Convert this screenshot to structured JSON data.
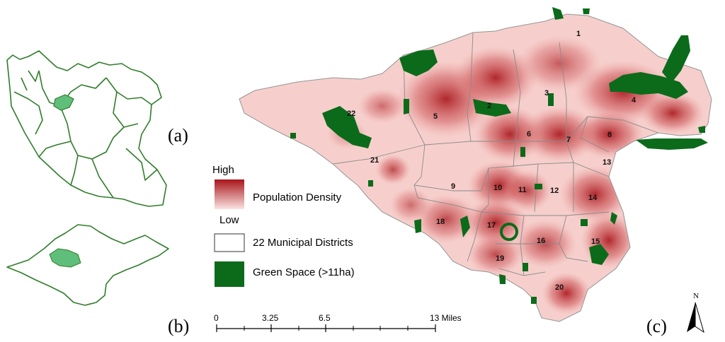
{
  "panels": {
    "a": "(a)",
    "b": "(b)",
    "c": "(c)"
  },
  "legend": {
    "high": "High",
    "low": "Low",
    "density": "Population Density",
    "districts": "22 Municipal Districts",
    "green": "Green Space (>11ha)"
  },
  "scale": {
    "t0": "0",
    "t1": "3.25",
    "t2": "6.5",
    "t3": "13 Miles"
  },
  "north": "N",
  "districts": [
    "1",
    "2",
    "3",
    "4",
    "5",
    "6",
    "7",
    "8",
    "9",
    "10",
    "11",
    "12",
    "13",
    "14",
    "15",
    "16",
    "17",
    "18",
    "19",
    "20",
    "21",
    "22"
  ],
  "colors": {
    "green_space": "#0b6b1a",
    "density_high": "#a8151b",
    "density_low": "#fbe3e1",
    "outline": "#2f7d2a",
    "highlight": "#5fbf7a"
  }
}
